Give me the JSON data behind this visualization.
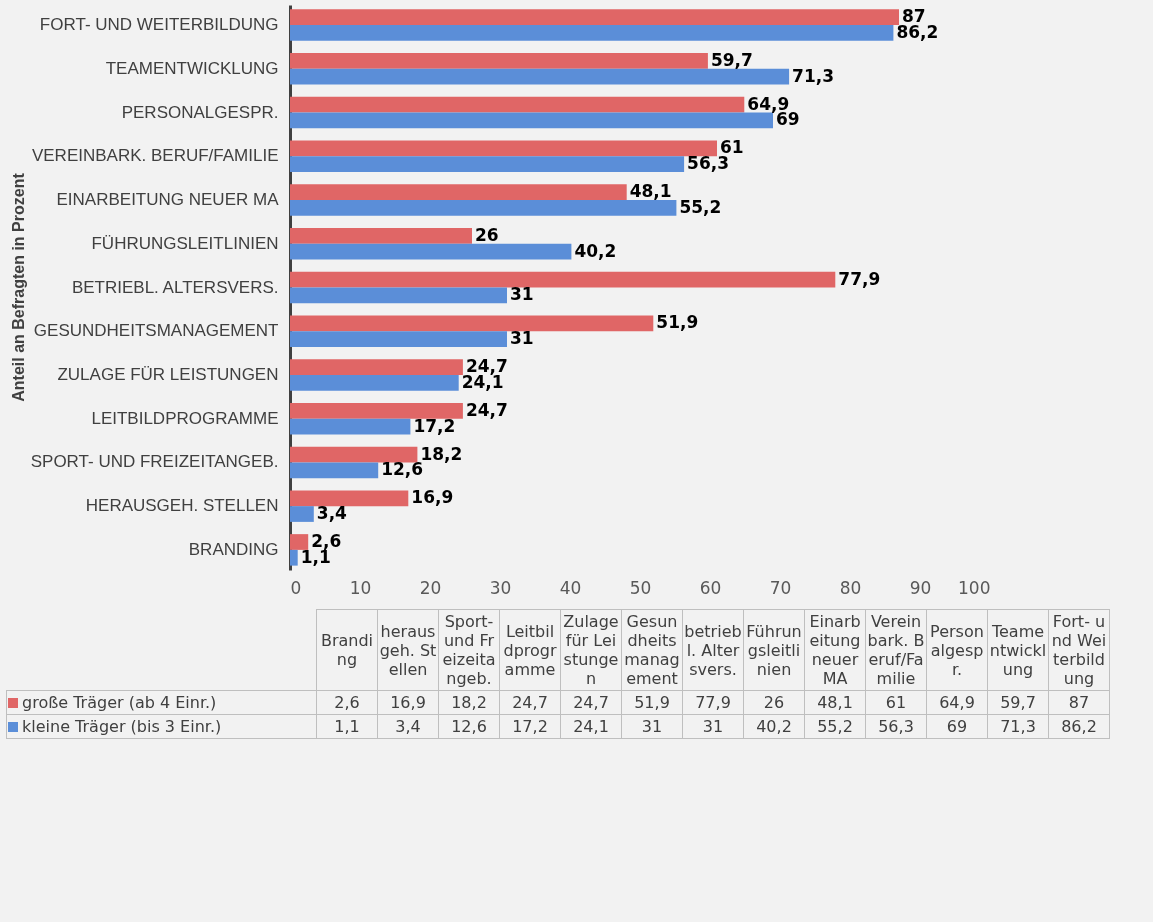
{
  "chart_data": {
    "type": "bar",
    "orientation": "horizontal",
    "ylabel": "Anteil an Befragten in Prozent",
    "categories": [
      "FORT- UND WEITERBILDUNG",
      "TEAMENTWICKLUNG",
      "PERSONALGESPR.",
      "VEREINBARK. BERUF/FAMILIE",
      "EINARBEITUNG NEUER MA",
      "FÜHRUNGSLEITLINIEN",
      "BETRIEBL. ALTERSVERS.",
      "GESUNDHEITSMANAGEMENT",
      "ZULAGE FÜR LEISTUNGEN",
      "LEITBILDPROGRAMME",
      "SPORT- UND FREIZEITANGEB.",
      "HERAUSGEH. STELLEN",
      "BRANDING"
    ],
    "series": [
      {
        "name": "große Träger (ab 4 Einr.)",
        "color": "#e06666",
        "values": [
          87,
          59.7,
          64.9,
          61,
          48.1,
          26,
          77.9,
          51.9,
          24.7,
          24.7,
          18.2,
          16.9,
          2.6
        ],
        "value_labels": [
          "87",
          "59,7",
          "64,9",
          "61",
          "48,1",
          "26",
          "77,9",
          "51,9",
          "24,7",
          "24,7",
          "18,2",
          "16,9",
          "2,6"
        ]
      },
      {
        "name": "kleine Träger (bis 3 Einr.)",
        "color": "#5b8ed8",
        "values": [
          86.2,
          71.3,
          69,
          56.3,
          55.2,
          40.2,
          31,
          31,
          24.1,
          17.2,
          12.6,
          3.4,
          1.1
        ],
        "value_labels": [
          "86,2",
          "71,3",
          "69",
          "56,3",
          "55,2",
          "40,2",
          "31",
          "31",
          "24,1",
          "17,2",
          "12,6",
          "3,4",
          "1,1"
        ]
      }
    ],
    "annotations": [
      "Branding",
      "herausgeh. Stellen",
      "Sport- und Freizeitangeb.",
      "Leitbildprogramme",
      "Zulage für Leistungen",
      "Gesundheitsmanagement",
      "betriebl. Altersvers.",
      "Führungsleitlinien",
      "Einarbeitung neuer MA",
      "Vereinbark. Beruf/Familie",
      "Personalgespr.",
      "Teamentwicklung",
      "Fort- und Weiterbildung"
    ],
    "xlim": [
      0,
      100
    ],
    "xticks": [
      0,
      10,
      20,
      30,
      40,
      50,
      60,
      70,
      80,
      90,
      100
    ],
    "grid": false,
    "legend": "bottom"
  }
}
